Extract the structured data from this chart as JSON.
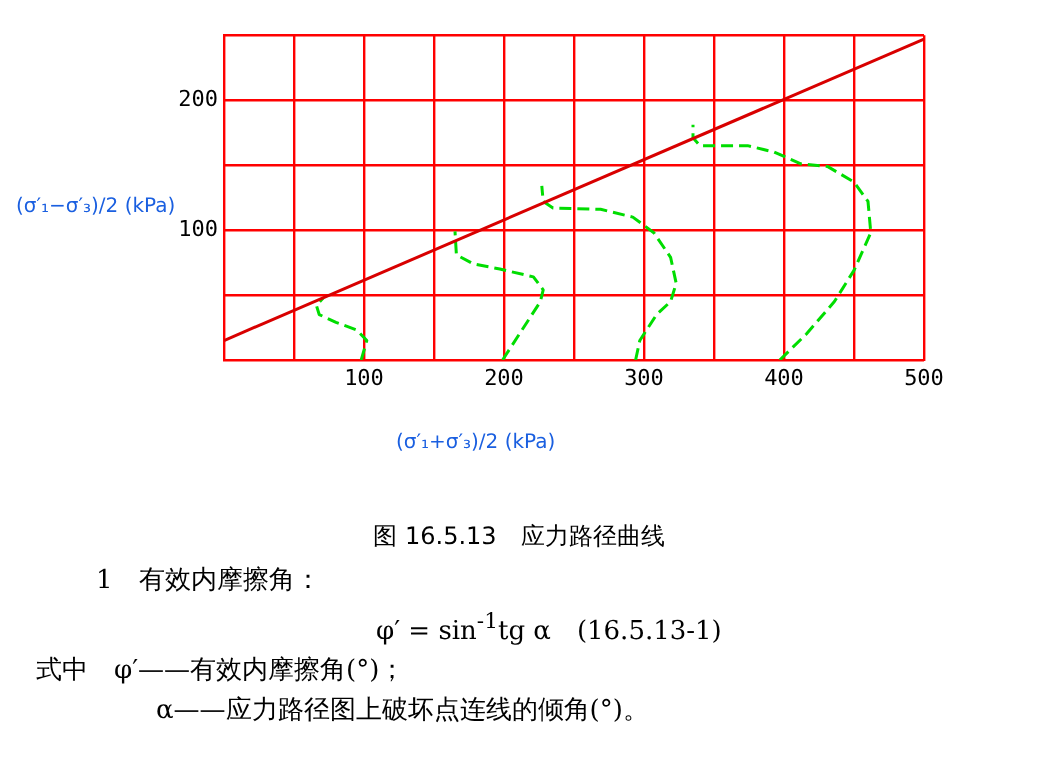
{
  "chart_data": {
    "type": "line",
    "title": "图 16.5.13　应力路径曲线",
    "xlabel": "(σ′₁+σ′₃)/2 (kPa)",
    "ylabel": "(σ′₁−σ′₃)/2 (kPa)",
    "xlim": [
      0,
      500
    ],
    "ylim": [
      0,
      250
    ],
    "xticks": [
      {
        "value": 0,
        "label": null
      },
      {
        "value": 50,
        "label": null
      },
      100,
      {
        "value": 150,
        "label": null
      },
      200,
      {
        "value": 250,
        "label": null
      },
      300,
      {
        "value": 350,
        "label": null
      },
      400,
      {
        "value": 450,
        "label": null
      },
      500
    ],
    "yticks": [
      {
        "value": 0,
        "label": null
      },
      {
        "value": 50,
        "label": null
      },
      100,
      {
        "value": 150,
        "label": null
      },
      200,
      {
        "value": 250,
        "label": null
      }
    ],
    "grid": true,
    "legend": false,
    "marker": "none",
    "series": [
      {
        "color": "#d80000",
        "line_style": "solid",
        "x": [
          0,
          500
        ],
        "values": [
          15,
          247
        ]
      },
      {
        "color": "#00dd00",
        "line_style": "dashed",
        "x": [
          98,
          102,
          95,
          80,
          68,
          66,
          71
        ],
        "values": [
          0,
          15,
          23,
          29,
          35,
          42,
          48
        ]
      },
      {
        "color": "#00dd00",
        "line_style": "dashed",
        "x": [
          199,
          214,
          226,
          228,
          221,
          197,
          178,
          166,
          165
        ],
        "values": [
          0,
          25,
          45,
          54,
          64,
          70,
          74,
          81,
          99
        ]
      },
      {
        "color": "#00dd00",
        "line_style": "dashed",
        "x": [
          294,
          297,
          309,
          319,
          323,
          319,
          307,
          292,
          269,
          235,
          228,
          227
        ],
        "values": [
          0,
          15,
          35,
          45,
          59,
          79,
          98,
          110,
          116,
          117,
          122,
          134
        ]
      },
      {
        "color": "#00dd00",
        "line_style": "dashed",
        "x": [
          397,
          416,
          436,
          450,
          462,
          460,
          450,
          431,
          412,
          393,
          374,
          340,
          335,
          335
        ],
        "values": [
          0,
          20,
          45,
          69,
          98,
          122,
          137,
          149,
          151,
          160,
          165,
          165,
          171,
          181
        ]
      }
    ],
    "annotations": [
      "1　有效内摩擦角：",
      "φ′ = sin$^{-1}$tg α　(16.5.13-1)",
      "式中　φ′——有效内摩擦角(°)；",
      "α——应力路径图上破坏点连线的倾角(°)。"
    ]
  }
}
